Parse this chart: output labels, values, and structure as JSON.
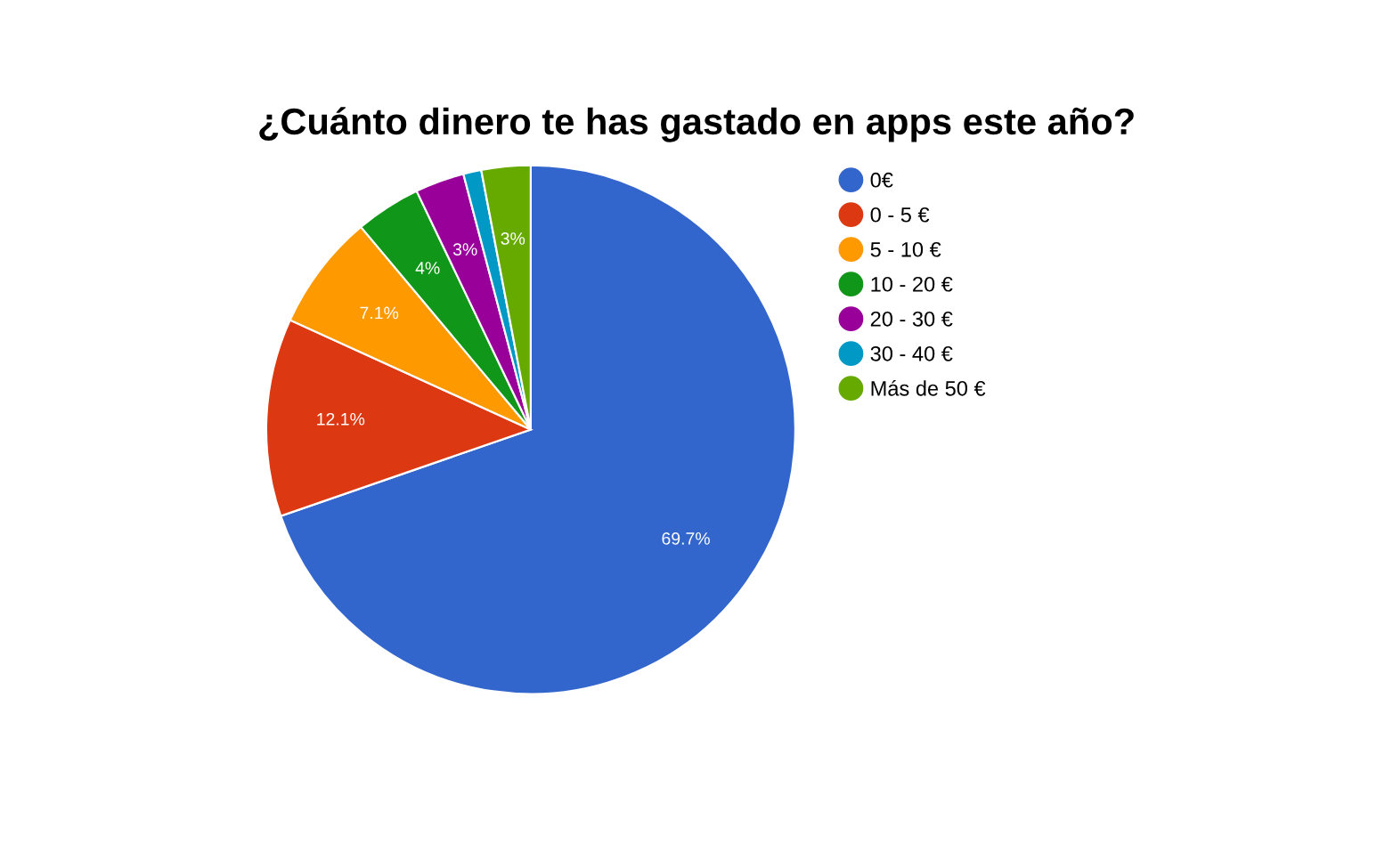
{
  "chart_data": {
    "type": "pie",
    "title": "¿Cuánto dinero te has gastado en apps este año?",
    "categories": [
      "0€",
      "0 - 5 €",
      "5 - 10 €",
      "10 - 20 €",
      "20 - 30 €",
      "30 - 40 €",
      "Más de 50 €"
    ],
    "values": [
      69.7,
      12.1,
      7.1,
      4,
      3,
      1.1,
      3
    ],
    "value_labels": [
      "69.7%",
      "12.1%",
      "7.1%",
      "4%",
      "3%",
      null,
      "3%"
    ],
    "colors": [
      "#3366cc",
      "#dc3912",
      "#ff9900",
      "#109618",
      "#990099",
      "#0099c6",
      "#66aa00"
    ],
    "legend": "right"
  }
}
